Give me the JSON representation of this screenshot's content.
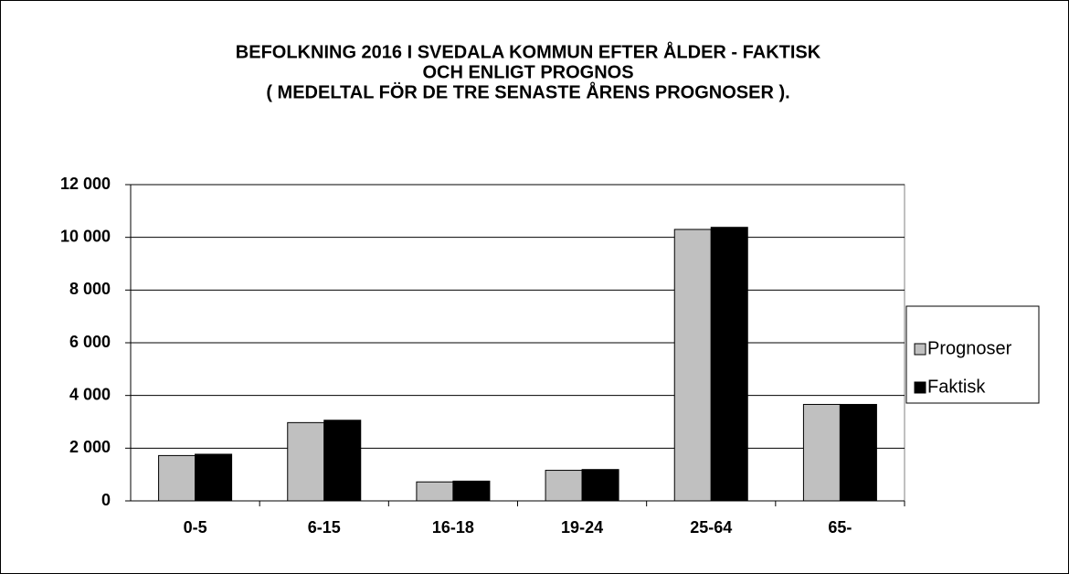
{
  "chart_data": {
    "type": "bar",
    "title": [
      "BEFOLKNING 2016 I SVEDALA KOMMUN EFTER ÅLDER - FAKTISK",
      "OCH ENLIGT PROGNOS",
      "( MEDELTAL FÖR DE TRE SENASTE ÅRENS PROGNOSER )."
    ],
    "categories": [
      "0-5",
      "6-15",
      "16-18",
      "19-24",
      "25-64",
      "65-"
    ],
    "series": [
      {
        "name": "Prognoser",
        "color": "#c0c0c0",
        "values": [
          1720,
          2970,
          720,
          1160,
          10300,
          3660
        ]
      },
      {
        "name": "Faktisk",
        "color": "#000000",
        "values": [
          1770,
          3060,
          750,
          1190,
          10380,
          3660
        ]
      }
    ],
    "ylim": [
      0,
      12000
    ],
    "yticks": [
      0,
      {
        "value": 2000,
        "label": "2 000"
      },
      {
        "value": 4000,
        "label": "4 000"
      },
      {
        "value": 6000,
        "label": "6 000"
      },
      {
        "value": 8000,
        "label": "8 000"
      },
      {
        "value": 10000,
        "label": "10 000"
      },
      {
        "value": 12000,
        "label": "12 000"
      }
    ],
    "grid": true,
    "legend": "right"
  }
}
